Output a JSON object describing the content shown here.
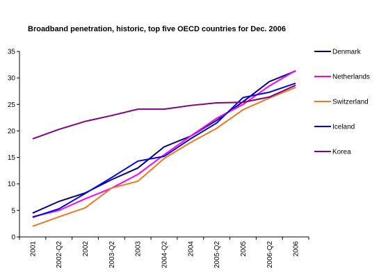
{
  "chart_data": {
    "type": "line",
    "title": "Broadband penetration, historic, top five OECD countries for Dec. 2006",
    "categories": [
      "2001",
      "2002-Q2",
      "2002",
      "2003-Q2",
      "2003",
      "2004-Q2",
      "2004",
      "2005-Q2",
      "2005",
      "2006-Q2",
      "2006"
    ],
    "series": [
      {
        "name": "Denmark",
        "color": "#000080",
        "values": [
          4.5,
          6.7,
          8.3,
          10.8,
          13.0,
          17.0,
          19.0,
          22.0,
          25.5,
          29.3,
          31.3
        ]
      },
      {
        "name": "Netherlands",
        "color": "#ff00ff",
        "values": [
          3.8,
          5.0,
          7.2,
          9.2,
          11.8,
          15.5,
          19.0,
          22.4,
          25.0,
          28.5,
          31.4
        ]
      },
      {
        "name": "Switzerland",
        "color": "#f07820",
        "values": [
          2.0,
          3.8,
          5.5,
          9.2,
          10.5,
          14.8,
          17.8,
          20.5,
          24.0,
          26.2,
          28.2
        ]
      },
      {
        "name": "Iceland",
        "color": "#0000ff",
        "values": [
          3.7,
          5.3,
          8.2,
          11.2,
          14.3,
          15.2,
          18.5,
          21.5,
          26.3,
          27.3,
          29.0
        ]
      },
      {
        "name": "Korea",
        "color": "#800080",
        "values": [
          18.5,
          20.3,
          21.8,
          22.9,
          24.1,
          24.1,
          24.8,
          25.3,
          25.4,
          26.4,
          28.6
        ]
      }
    ],
    "ylim": [
      0,
      35
    ],
    "yticks": [
      0,
      5,
      10,
      15,
      20,
      25,
      30,
      35
    ],
    "grid": false,
    "legend": "right"
  }
}
